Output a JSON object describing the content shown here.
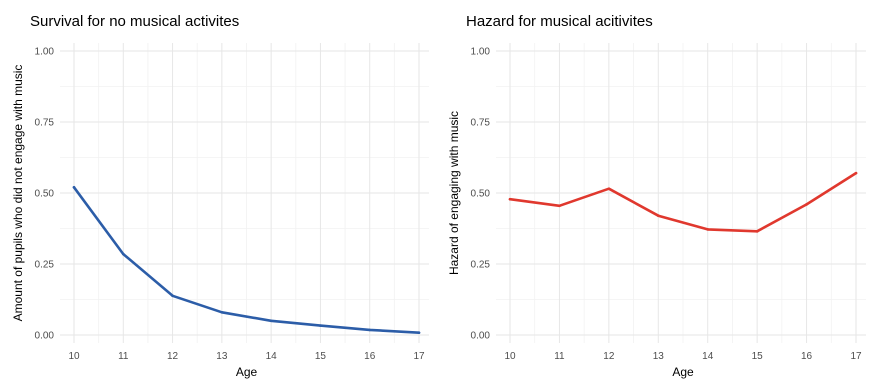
{
  "chart_data": [
    {
      "type": "line",
      "title": "Survival for no musical activites",
      "xlabel": "Age",
      "ylabel": "Amount of pupils who did not engage with music",
      "xlim": [
        10,
        17
      ],
      "ylim": [
        0,
        1
      ],
      "x_ticks": [
        "10",
        "11",
        "12",
        "13",
        "14",
        "15",
        "16",
        "17"
      ],
      "y_ticks": [
        "0.00",
        "0.25",
        "0.50",
        "0.75",
        "1.00"
      ],
      "grid": true,
      "series": [
        {
          "color": "#2c5da8",
          "x": [
            10,
            11,
            12,
            13,
            14,
            15,
            16,
            17
          ],
          "y": [
            0.52,
            0.285,
            0.138,
            0.08,
            0.05,
            0.033,
            0.018,
            0.008
          ]
        }
      ]
    },
    {
      "type": "line",
      "title": "Hazard for musical acitivites",
      "xlabel": "Age",
      "ylabel": "Hazard of engaging with music",
      "xlim": [
        10,
        17
      ],
      "ylim": [
        0,
        1
      ],
      "x_ticks": [
        "10",
        "11",
        "12",
        "13",
        "14",
        "15",
        "16",
        "17"
      ],
      "y_ticks": [
        "0.00",
        "0.25",
        "0.50",
        "0.75",
        "1.00"
      ],
      "grid": true,
      "series": [
        {
          "color": "#e0382e",
          "x": [
            10,
            11,
            12,
            13,
            14,
            15,
            16,
            17
          ],
          "y": [
            0.478,
            0.455,
            0.515,
            0.42,
            0.372,
            0.365,
            0.46,
            0.57
          ]
        }
      ]
    }
  ]
}
